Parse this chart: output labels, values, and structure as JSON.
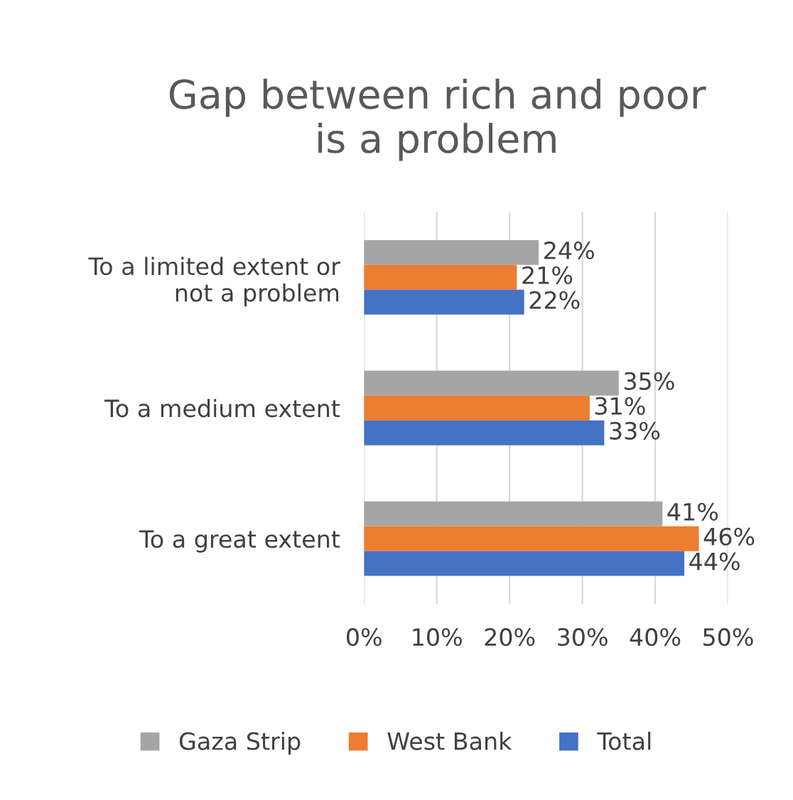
{
  "chart_data": {
    "type": "bar",
    "orientation": "horizontal",
    "title": "Gap between rich and poor\nis a problem",
    "categories": [
      "To a limited extent or\nnot a problem",
      "To a medium extent",
      "To a great extent"
    ],
    "series": [
      {
        "name": "Gaza Strip",
        "color": "#a5a5a5",
        "values": [
          24,
          35,
          41
        ],
        "value_labels": [
          "24%",
          "35%",
          "41%"
        ]
      },
      {
        "name": "West Bank",
        "color": "#ed7d31",
        "values": [
          21,
          31,
          46
        ],
        "value_labels": [
          "21%",
          "31%",
          "46%"
        ]
      },
      {
        "name": "Total",
        "color": "#4472c4",
        "values": [
          22,
          33,
          44
        ],
        "value_labels": [
          "22%",
          "33%",
          "44%"
        ]
      }
    ],
    "xlim": [
      0,
      50
    ],
    "xticks": [
      {
        "value": 0,
        "label": "0%"
      },
      {
        "value": 10,
        "label": "10%"
      },
      {
        "value": 20,
        "label": "20%"
      },
      {
        "value": 30,
        "label": "30%"
      },
      {
        "value": 40,
        "label": "40%"
      },
      {
        "value": 50,
        "label": "50%"
      }
    ],
    "grid": "x",
    "legend": "bottom"
  }
}
